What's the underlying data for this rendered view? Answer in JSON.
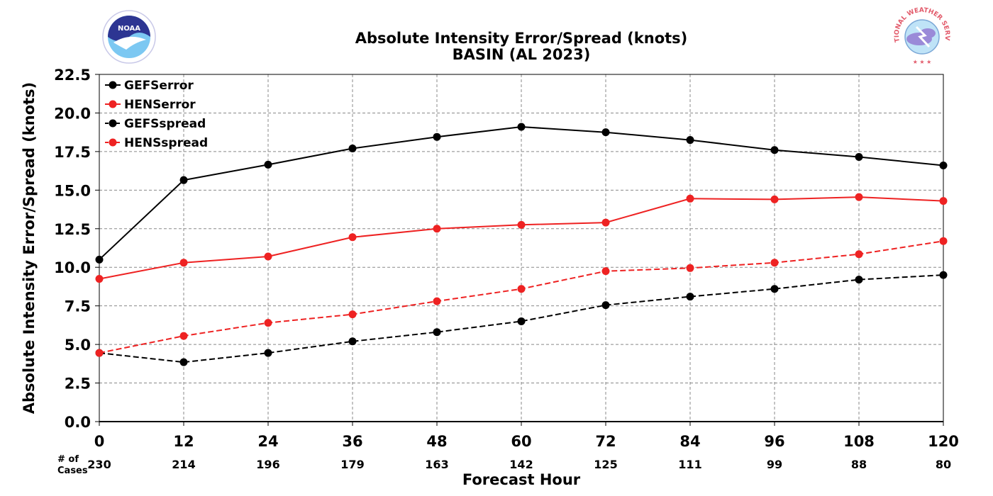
{
  "chart_data": {
    "type": "line",
    "title": "Absolute Intensity Error/Spread (knots)",
    "subtitle": "BASIN (AL 2023)",
    "xlabel": "Forecast Hour",
    "ylabel": "Absolute Intensity Error/Spread (knots)",
    "x": [
      0,
      12,
      24,
      36,
      48,
      60,
      72,
      84,
      96,
      108,
      120
    ],
    "x_tick_labels": [
      "0",
      "12",
      "24",
      "36",
      "48",
      "60",
      "72",
      "84",
      "96",
      "108",
      "120"
    ],
    "xlim": [
      0,
      120
    ],
    "ylim": [
      0,
      22.5
    ],
    "y_ticks": [
      0,
      2.5,
      5,
      7.5,
      10,
      12.5,
      15,
      17.5,
      20,
      22.5
    ],
    "y_tick_labels": [
      "0.0",
      "2.5",
      "5.0",
      "7.5",
      "10.0",
      "12.5",
      "15.0",
      "17.5",
      "20.0",
      "22.5"
    ],
    "grid": true,
    "legend_position": "top-left",
    "series": [
      {
        "name": "GEFSerror",
        "color": "#000000",
        "dashed": false,
        "values": [
          10.5,
          15.65,
          16.65,
          17.7,
          18.45,
          19.1,
          18.75,
          18.25,
          17.6,
          17.15,
          16.6
        ]
      },
      {
        "name": "HENSerror",
        "color": "#ee2222",
        "dashed": false,
        "values": [
          9.25,
          10.3,
          10.7,
          11.95,
          12.5,
          12.75,
          12.9,
          14.45,
          14.4,
          14.55,
          14.3
        ]
      },
      {
        "name": "GEFSspread",
        "color": "#000000",
        "dashed": true,
        "values": [
          4.45,
          3.85,
          4.45,
          5.2,
          5.8,
          6.5,
          7.55,
          8.1,
          8.6,
          9.2,
          9.5
        ]
      },
      {
        "name": "HENSspread",
        "color": "#ee2222",
        "dashed": true,
        "values": [
          4.45,
          5.55,
          6.4,
          6.95,
          7.8,
          8.6,
          9.75,
          9.95,
          10.3,
          10.85,
          11.7
        ]
      }
    ],
    "cases_header": [
      "# of",
      "Cases"
    ],
    "cases": [
      230,
      214,
      196,
      179,
      163,
      142,
      125,
      111,
      99,
      88,
      80
    ]
  },
  "logos": {
    "left": {
      "name": "noaa-logo",
      "text": "NOAA"
    },
    "right": {
      "name": "nws-logo",
      "text": "NATIONAL WEATHER SERVICE"
    }
  }
}
